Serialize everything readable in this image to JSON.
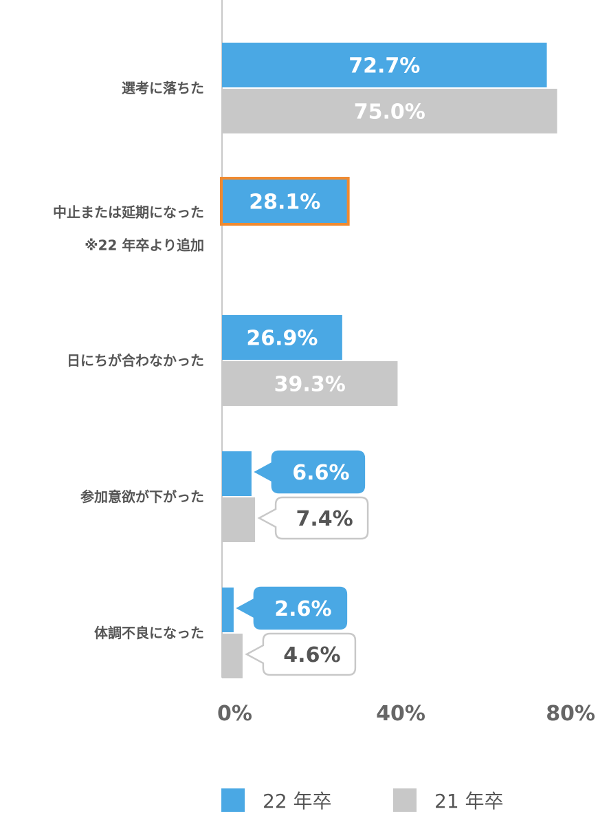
{
  "chart_data": {
    "type": "bar",
    "orientation": "horizontal",
    "categories": [
      [
        "選考に落ちた"
      ],
      [
        "中止または延期になった",
        "※22 年卒より追加"
      ],
      [
        "日にちが合わなかった"
      ],
      [
        "参加意欲が下がった"
      ],
      [
        "体調不良になった"
      ]
    ],
    "series": [
      {
        "name": "22 年卒",
        "color": "#4aa8e4",
        "values": [
          72.7,
          28.1,
          26.9,
          6.6,
          2.6
        ],
        "labels": [
          "72.7%",
          "28.1%",
          "26.9%",
          "6.6%",
          "2.6%"
        ]
      },
      {
        "name": "21 年卒",
        "color": "#c8c8c8",
        "values": [
          75.0,
          null,
          39.3,
          7.4,
          4.6
        ],
        "labels": [
          "75.0%",
          "",
          "39.3%",
          "7.4%",
          "4.6%"
        ]
      }
    ],
    "highlight": {
      "series": 0,
      "category": 1,
      "color": "#f08a30"
    },
    "xlim": [
      0,
      80
    ],
    "xticks": [
      0,
      40,
      80
    ],
    "xtick_labels": [
      "0%",
      "40%",
      "80%"
    ],
    "grid": false,
    "legend_position": "bottom",
    "title": "",
    "xlabel": "",
    "ylabel": ""
  }
}
